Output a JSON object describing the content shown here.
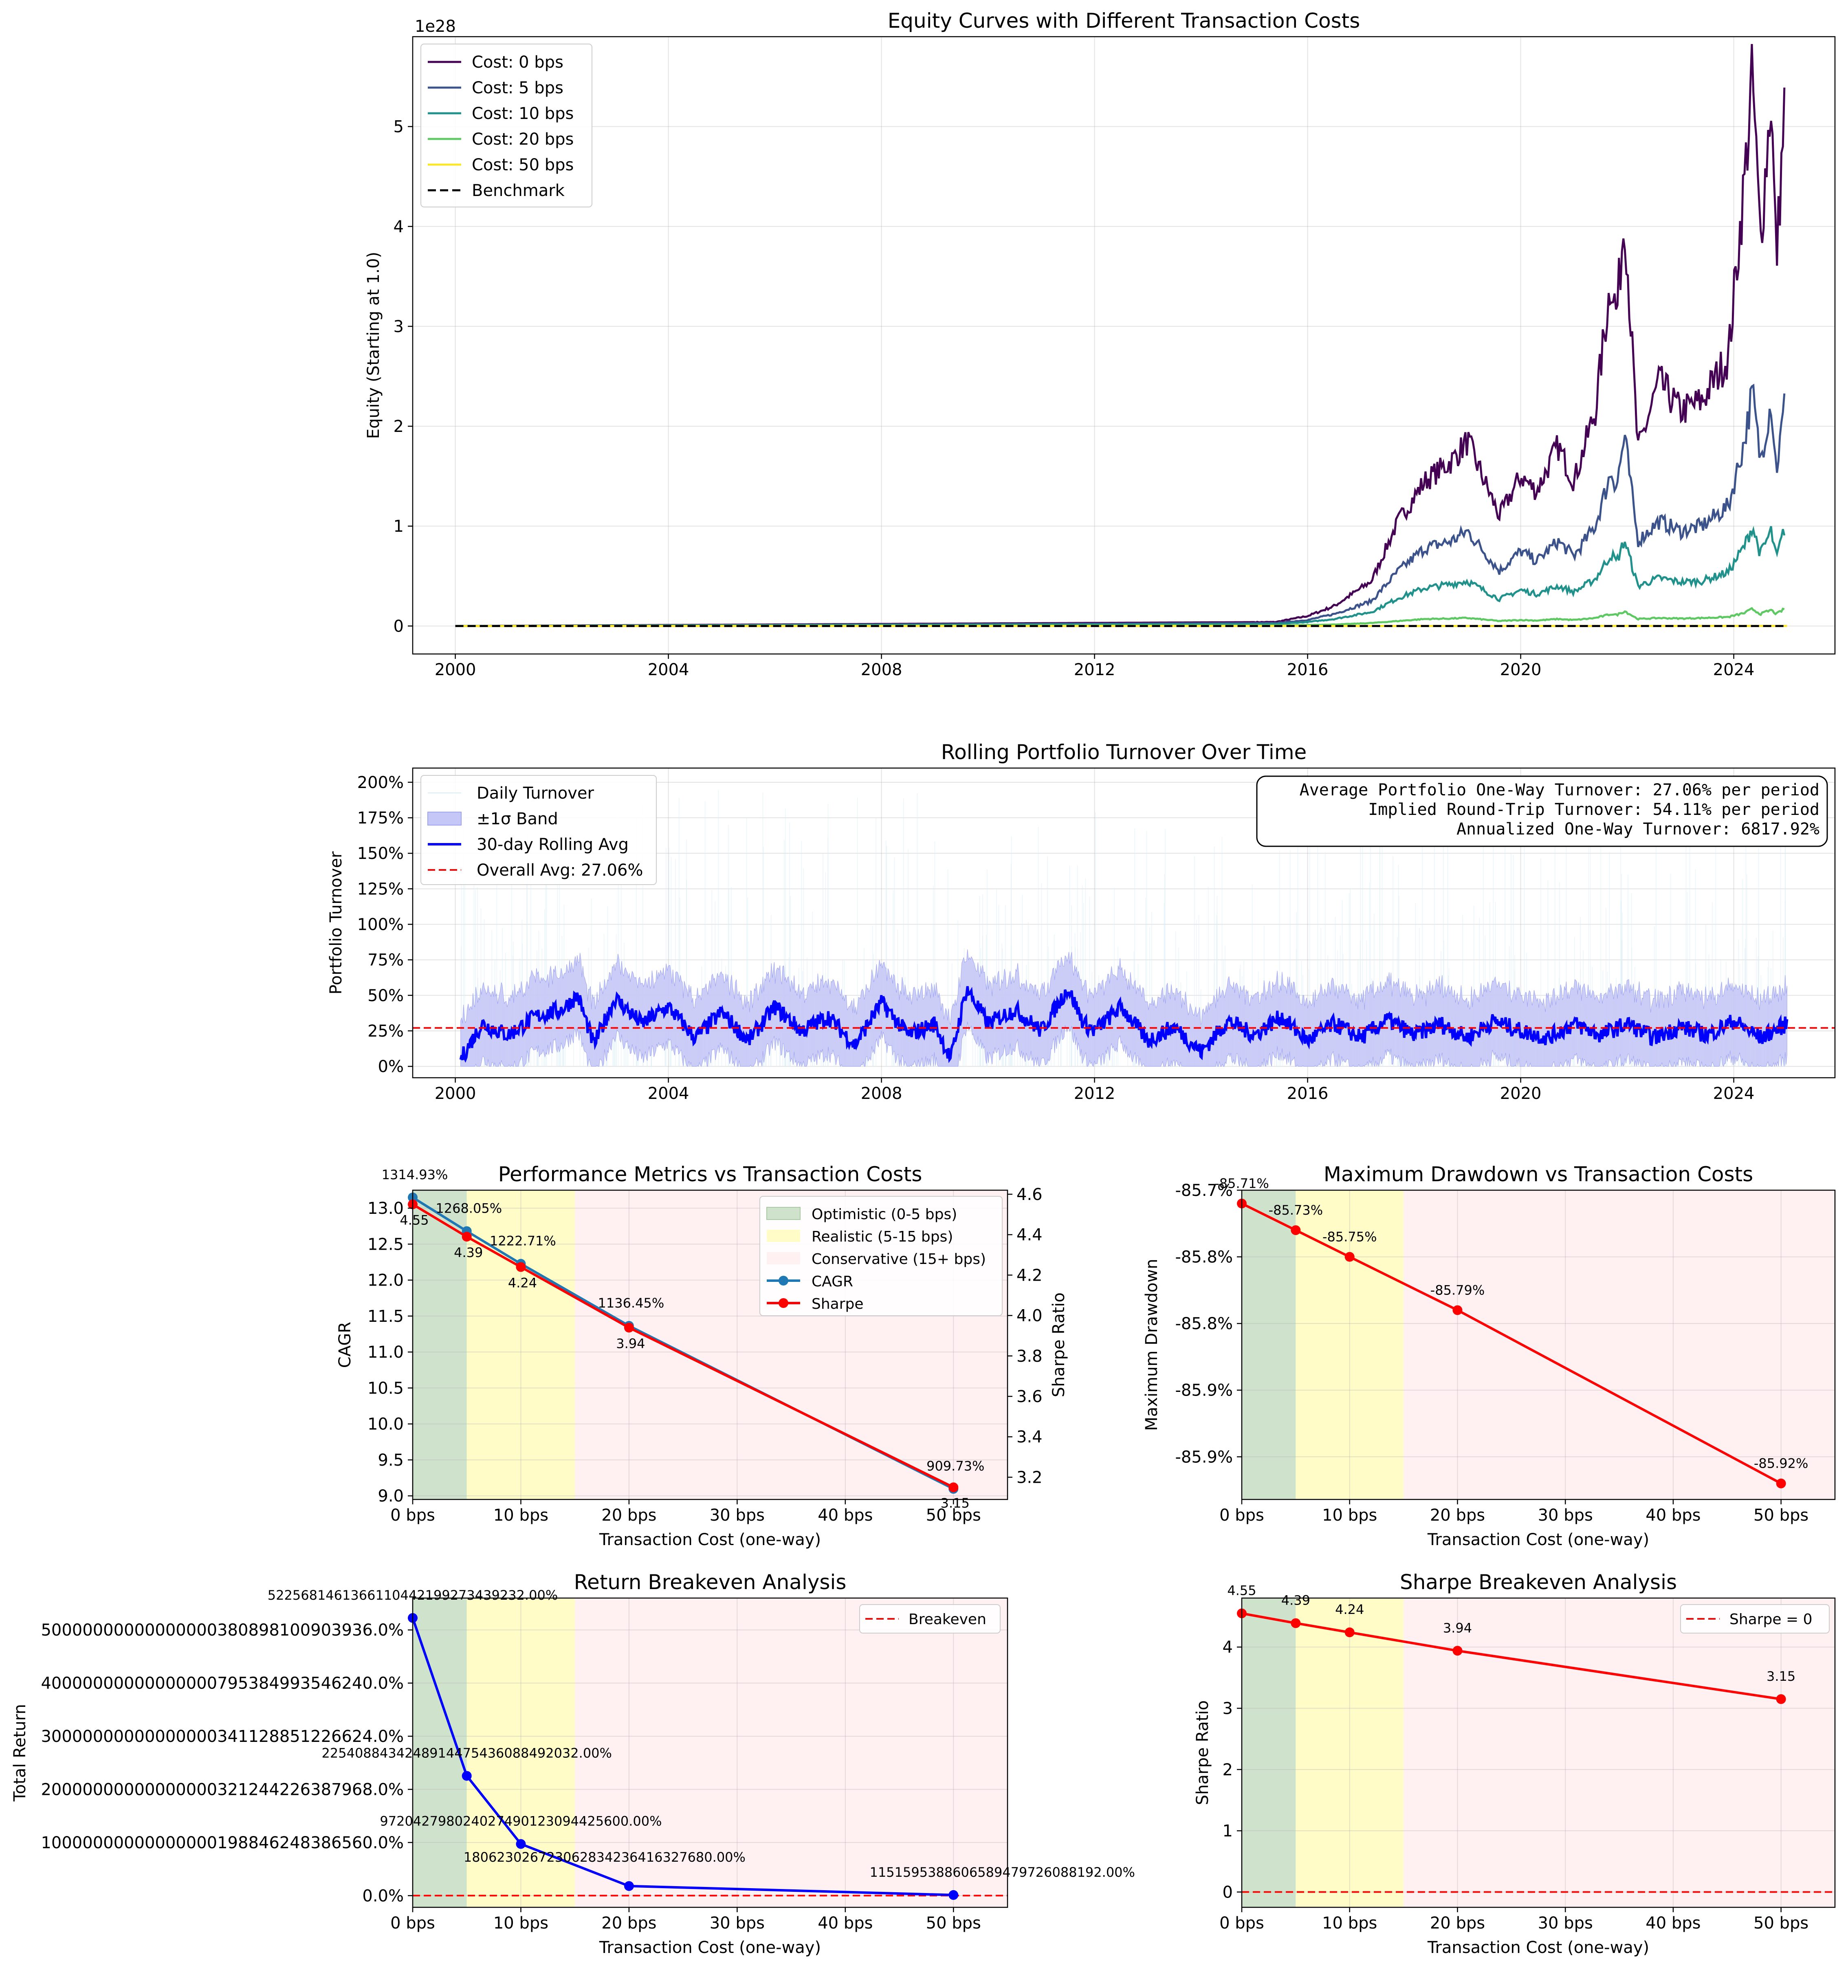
{
  "chart_data": [
    {
      "id": "equity",
      "type": "line",
      "title": "Equity Curves with Different Transaction Costs",
      "xlabel": "",
      "ylabel": "Equity (Starting at 1.0)",
      "offset_text": "1e28",
      "x_range": [
        1999.2,
        2025.9
      ],
      "ylim": [
        -0.28,
        5.9
      ],
      "x_ticks": [
        2000,
        2004,
        2008,
        2012,
        2016,
        2020,
        2024
      ],
      "x_tick_labels": [
        "2000",
        "2004",
        "2008",
        "2012",
        "2016",
        "2020",
        "2024"
      ],
      "y_ticks": [
        0,
        1,
        2,
        3,
        4,
        5
      ],
      "y_tick_labels": [
        "0",
        "1",
        "2",
        "3",
        "4",
        "5"
      ],
      "grid": true,
      "legend_position": "upper-left",
      "legend": [
        "Cost: 0 bps",
        "Cost: 5 bps",
        "Cost: 10 bps",
        "Cost: 20 bps",
        "Cost: 50 bps",
        "Benchmark"
      ],
      "series": [
        {
          "name": "Cost: 0 bps",
          "color": "#440154",
          "x": [
            2000,
            2015.4,
            2016.0,
            2016.5,
            2017.2,
            2017.7,
            2018.2,
            2018.7,
            2019.0,
            2019.6,
            2020.0,
            2020.3,
            2020.7,
            2021.0,
            2021.4,
            2021.7,
            2021.8,
            2021.95,
            2022.2,
            2022.6,
            2023.0,
            2023.4,
            2023.9,
            2024.2,
            2024.35,
            2024.5,
            2024.7,
            2024.8,
            2024.95
          ],
          "y": [
            0,
            0.04,
            0.1,
            0.2,
            0.45,
            1.05,
            1.45,
            1.65,
            1.85,
            1.1,
            1.5,
            1.35,
            1.8,
            1.45,
            2.15,
            3.5,
            3.1,
            4.15,
            1.75,
            2.45,
            2.15,
            2.25,
            2.7,
            4.45,
            5.5,
            3.85,
            5.3,
            3.65,
            5.15
          ]
        },
        {
          "name": "Cost: 5 bps",
          "color": "#3b528b",
          "x": [
            2000,
            2015.4,
            2016.0,
            2016.5,
            2017.2,
            2017.7,
            2018.2,
            2018.7,
            2019.0,
            2019.6,
            2020.0,
            2020.3,
            2020.7,
            2021.0,
            2021.4,
            2021.7,
            2021.8,
            2021.95,
            2022.2,
            2022.6,
            2023.0,
            2023.4,
            2023.9,
            2024.2,
            2024.35,
            2024.5,
            2024.7,
            2024.8,
            2024.95
          ],
          "y": [
            0,
            0.03,
            0.06,
            0.12,
            0.25,
            0.55,
            0.78,
            0.85,
            0.95,
            0.55,
            0.75,
            0.65,
            0.85,
            0.7,
            1.0,
            1.55,
            1.4,
            1.9,
            0.85,
            1.05,
            0.95,
            1.0,
            1.2,
            1.85,
            2.35,
            1.65,
            2.25,
            1.55,
            2.2
          ]
        },
        {
          "name": "Cost: 10 bps",
          "color": "#21918c",
          "x": [
            2000,
            2015.4,
            2016.0,
            2016.5,
            2017.2,
            2017.7,
            2018.2,
            2018.7,
            2019.0,
            2019.6,
            2020.0,
            2020.3,
            2020.7,
            2021.0,
            2021.4,
            2021.7,
            2021.8,
            2021.95,
            2022.2,
            2022.6,
            2023.0,
            2023.4,
            2023.9,
            2024.2,
            2024.35,
            2024.5,
            2024.7,
            2024.8,
            2024.95
          ],
          "y": [
            0,
            0.02,
            0.04,
            0.07,
            0.14,
            0.28,
            0.38,
            0.42,
            0.45,
            0.27,
            0.36,
            0.32,
            0.4,
            0.34,
            0.47,
            0.72,
            0.64,
            0.86,
            0.4,
            0.48,
            0.44,
            0.45,
            0.54,
            0.8,
            1.0,
            0.72,
            0.95,
            0.68,
            0.97
          ]
        },
        {
          "name": "Cost: 20 bps",
          "color": "#5ec962",
          "x": [
            2000,
            2015.4,
            2016.0,
            2016.5,
            2017.2,
            2017.7,
            2018.2,
            2018.7,
            2019.0,
            2019.6,
            2020.0,
            2020.3,
            2020.7,
            2021.0,
            2021.4,
            2021.7,
            2021.8,
            2021.95,
            2022.2,
            2022.6,
            2023.0,
            2023.4,
            2023.9,
            2024.2,
            2024.35,
            2024.5,
            2024.7,
            2024.8,
            2024.95
          ],
          "y": [
            0,
            0.005,
            0.01,
            0.015,
            0.03,
            0.05,
            0.07,
            0.075,
            0.08,
            0.05,
            0.06,
            0.055,
            0.07,
            0.06,
            0.08,
            0.12,
            0.11,
            0.15,
            0.07,
            0.08,
            0.075,
            0.08,
            0.09,
            0.13,
            0.17,
            0.12,
            0.16,
            0.12,
            0.17
          ]
        },
        {
          "name": "Cost: 50 bps",
          "color": "#fde725",
          "x": [
            2000,
            2025.0
          ],
          "y": [
            0,
            0.001
          ]
        },
        {
          "name": "Benchmark",
          "color": "#000000",
          "dashed": true,
          "x": [
            2000,
            2025.0
          ],
          "y": [
            0,
            0
          ]
        }
      ]
    },
    {
      "id": "turnover",
      "type": "line",
      "title": "Rolling Portfolio Turnover Over Time",
      "xlabel": "",
      "ylabel": "Portfolio Turnover",
      "x_range": [
        1999.2,
        2025.9
      ],
      "ylim": [
        -0.08,
        2.1
      ],
      "x_ticks": [
        2000,
        2004,
        2008,
        2012,
        2016,
        2020,
        2024
      ],
      "x_tick_labels": [
        "2000",
        "2004",
        "2008",
        "2012",
        "2016",
        "2020",
        "2024"
      ],
      "y_ticks": [
        0,
        0.25,
        0.5,
        0.75,
        1.0,
        1.25,
        1.5,
        1.75,
        2.0
      ],
      "y_tick_labels": [
        "0%",
        "25%",
        "50%",
        "75%",
        "100%",
        "125%",
        "150%",
        "175%",
        "200%"
      ],
      "grid": true,
      "legend_position": "upper-left",
      "legend": [
        "Daily Turnover",
        "±1σ Band",
        "30-day Rolling Avg",
        "Overall Avg: 27.06%"
      ],
      "overall_avg": 0.2706,
      "stats_box": [
        "Average Portfolio One-Way Turnover: 27.06% per period",
        "Implied Round-Trip Turnover: 54.11% per period",
        "Annualized One-Way Turnover: 6817.92%"
      ],
      "series": [
        {
          "name": "30-day Rolling Avg",
          "color": "#0000ff",
          "x": [
            2000.1,
            2000.5,
            2001.0,
            2001.5,
            2002.0,
            2002.3,
            2002.6,
            2003.0,
            2003.5,
            2004.0,
            2004.5,
            2005.0,
            2005.5,
            2006.0,
            2006.5,
            2007.0,
            2007.5,
            2008.0,
            2008.5,
            2009.0,
            2009.3,
            2009.6,
            2010.0,
            2010.5,
            2011.0,
            2011.5,
            2011.8,
            2012.0,
            2012.5,
            2013.0,
            2013.5,
            2014.0,
            2014.5,
            2015.0,
            2015.5,
            2016.0,
            2016.5,
            2017.0,
            2017.5,
            2018.0,
            2018.5,
            2019.0,
            2019.5,
            2020.0,
            2020.5,
            2021.0,
            2021.5,
            2022.0,
            2022.5,
            2023.0,
            2023.5,
            2024.0,
            2024.5,
            2025.0
          ],
          "y": [
            0.05,
            0.3,
            0.22,
            0.35,
            0.4,
            0.5,
            0.15,
            0.48,
            0.3,
            0.42,
            0.2,
            0.38,
            0.18,
            0.42,
            0.25,
            0.35,
            0.15,
            0.45,
            0.22,
            0.3,
            0.05,
            0.55,
            0.3,
            0.4,
            0.25,
            0.55,
            0.3,
            0.25,
            0.42,
            0.18,
            0.28,
            0.1,
            0.32,
            0.22,
            0.35,
            0.18,
            0.3,
            0.2,
            0.33,
            0.22,
            0.3,
            0.2,
            0.32,
            0.25,
            0.2,
            0.3,
            0.22,
            0.3,
            0.2,
            0.28,
            0.22,
            0.32,
            0.2,
            0.3
          ]
        }
      ]
    },
    {
      "id": "perf",
      "type": "line",
      "title": "Performance Metrics vs Transaction Costs",
      "xlabel": "Transaction Cost (one-way)",
      "ylabel": "CAGR",
      "ylabel_right": "Sharpe Ratio",
      "x_range": [
        0,
        55
      ],
      "ylim": [
        8.95,
        13.25
      ],
      "ylim_right": [
        3.09,
        4.62
      ],
      "x_ticks": [
        0,
        10,
        20,
        30,
        40,
        50
      ],
      "x_tick_labels": [
        "0 bps",
        "10 bps",
        "20 bps",
        "30 bps",
        "40 bps",
        "50 bps"
      ],
      "y_ticks": [
        9.0,
        9.5,
        10.0,
        10.5,
        11.0,
        11.5,
        12.0,
        12.5,
        13.0
      ],
      "y_tick_labels": [
        "9.0",
        "9.5",
        "10.0",
        "10.5",
        "11.0",
        "11.5",
        "12.0",
        "12.5",
        "13.0"
      ],
      "y_ticks_right": [
        3.2,
        3.4,
        3.6,
        3.8,
        4.0,
        4.2,
        4.4,
        4.6
      ],
      "y_tick_labels_right": [
        "3.2",
        "3.4",
        "3.6",
        "3.8",
        "4.0",
        "4.2",
        "4.4",
        "4.6"
      ],
      "grid": true,
      "legend_position": "upper-right",
      "legend": [
        "Optimistic (0-5 bps)",
        "Realistic (5-15 bps)",
        "Conservative (15+ bps)",
        "CAGR",
        "Sharpe"
      ],
      "x": [
        0,
        5,
        10,
        20,
        50
      ],
      "series": [
        {
          "name": "CAGR",
          "color": "#1f77b4",
          "values": [
            13.1493,
            12.6805,
            12.2271,
            11.3645,
            9.0973
          ]
        },
        {
          "name": "Sharpe",
          "color": "#ff0000",
          "values": [
            4.55,
            4.39,
            4.24,
            3.94,
            3.15
          ]
        }
      ],
      "data_labels": [
        "1314.93%",
        "1268.05%",
        "1222.71%",
        "1136.45%",
        "909.73%"
      ],
      "sharpe_labels": [
        "4.55",
        "4.39",
        "4.24",
        "3.94",
        "3.15"
      ]
    },
    {
      "id": "drawdown",
      "type": "line",
      "title": "Maximum Drawdown vs Transaction Costs",
      "xlabel": "Transaction Cost (one-way)",
      "ylabel": "Maximum Drawdown",
      "x_range": [
        0,
        55
      ],
      "ylim": [
        -85.932,
        -85.7
      ],
      "x_ticks": [
        0,
        10,
        20,
        30,
        40,
        50
      ],
      "x_tick_labels": [
        "0 bps",
        "10 bps",
        "20 bps",
        "30 bps",
        "40 bps",
        "50 bps"
      ],
      "y_ticks": [
        -85.7,
        -85.75,
        -85.8,
        -85.85,
        -85.9
      ],
      "y_tick_labels": [
        "-85.7%",
        "-85.8%",
        "-85.8%",
        "-85.9%",
        "-85.9%"
      ],
      "grid": true,
      "x": [
        0,
        5,
        10,
        20,
        50
      ],
      "series": [
        {
          "name": "",
          "color": "#ff0000",
          "values": [
            -85.71,
            -85.73,
            -85.75,
            -85.79,
            -85.92
          ]
        }
      ],
      "data_labels": [
        "-85.71%",
        "-85.73%",
        "-85.75%",
        "-85.79%",
        "-85.92%"
      ]
    },
    {
      "id": "return_be",
      "type": "line",
      "title": "Return Breakeven Analysis",
      "xlabel": "Transaction Cost (one-way)",
      "ylabel": "Total Return",
      "x_range": [
        0,
        55
      ],
      "ylim": [
        -0.22,
        5.6
      ],
      "x_ticks": [
        0,
        10,
        20,
        30,
        40,
        50
      ],
      "x_tick_labels": [
        "0 bps",
        "10 bps",
        "20 bps",
        "30 bps",
        "40 bps",
        "50 bps"
      ],
      "y_ticks": [
        0,
        1,
        2,
        3,
        4,
        5
      ],
      "y_tick_labels": [
        "0.0%",
        "10000000000000000198846248386560.0%",
        "20000000000000000321244226387968.0%",
        "30000000000000000341128851226624.0%",
        "40000000000000000795384993546240.0%",
        "50000000000000000380898100903936.0%"
      ],
      "y_units": "1e31 %",
      "grid": true,
      "legend_position": "upper-right",
      "legend": [
        "Breakeven"
      ],
      "x": [
        0,
        5,
        10,
        20,
        50
      ],
      "series": [
        {
          "name": "",
          "color": "#0000ff",
          "values": [
            5.2257,
            2.2541,
            0.972,
            0.1806,
            0.0115
          ]
        }
      ],
      "data_labels": [
        "522568146136611044219927343923 2.00%",
        "2254088434248914475436088492032.00%",
        "972042798024027490123094425600.00%",
        "180623026723062834236416327680.00%",
        "11515953886065894797260881 92.00%"
      ]
    },
    {
      "id": "sharpe_be",
      "type": "line",
      "title": "Sharpe Breakeven Analysis",
      "xlabel": "Transaction Cost (one-way)",
      "ylabel": "Sharpe Ratio",
      "x_range": [
        0,
        55
      ],
      "ylim": [
        -0.25,
        4.8
      ],
      "x_ticks": [
        0,
        10,
        20,
        30,
        40,
        50
      ],
      "x_tick_labels": [
        "0 bps",
        "10 bps",
        "20 bps",
        "30 bps",
        "40 bps",
        "50 bps"
      ],
      "y_ticks": [
        0,
        1,
        2,
        3,
        4
      ],
      "y_tick_labels": [
        "0",
        "1",
        "2",
        "3",
        "4"
      ],
      "grid": true,
      "legend_position": "upper-right",
      "legend": [
        "Sharpe = 0"
      ],
      "x": [
        0,
        5,
        10,
        20,
        50
      ],
      "series": [
        {
          "name": "",
          "color": "#ff0000",
          "values": [
            4.55,
            4.39,
            4.24,
            3.94,
            3.15
          ]
        }
      ],
      "data_labels": [
        "4.55",
        "4.39",
        "4.24",
        "3.94",
        "3.15"
      ]
    }
  ],
  "colors": {
    "optimistic_band": "#cfe3cc",
    "realistic_band": "#fffcc8",
    "conservative_band": "#fff0f2",
    "breakeven_line": "#ff0000",
    "turnover_band": "#c5c8f6",
    "daily_turnover": "#d8ecf6"
  }
}
